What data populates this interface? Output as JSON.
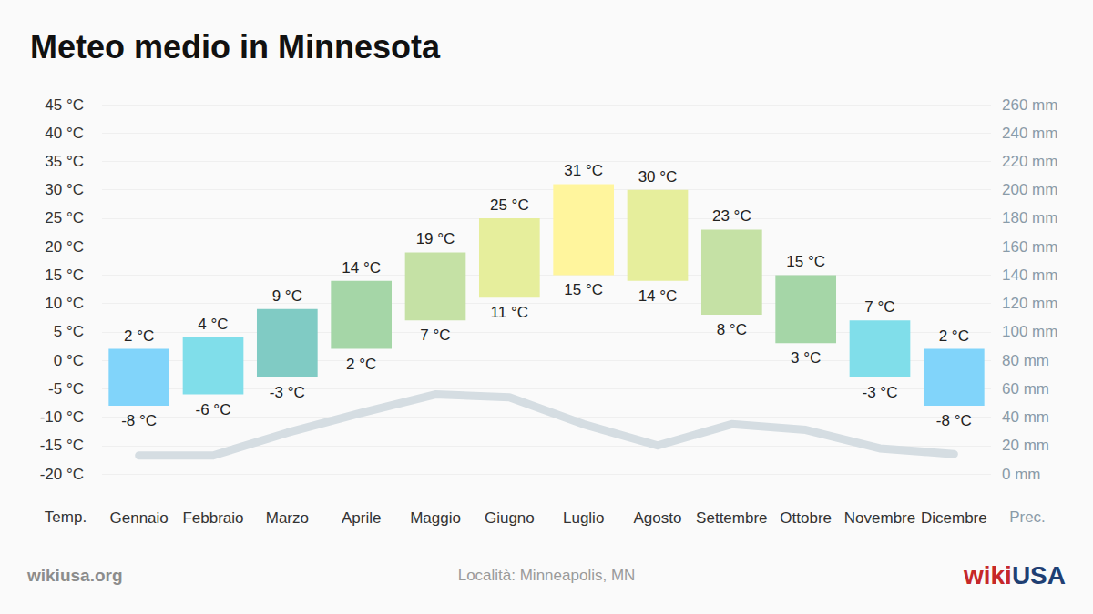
{
  "chart_data": {
    "type": "bar",
    "title": "Meteo medio in Minnesota",
    "ylabel": "Temp.",
    "y2label": "Prec.",
    "source": "wikiusa.org",
    "location": "Località: Minneapolis, MN",
    "logo": [
      "wiki",
      "USA"
    ],
    "categories": [
      "Gennaio",
      "Febbraio",
      "Marzo",
      "Aprile",
      "Maggio",
      "Giugno",
      "Luglio",
      "Agosto",
      "Settembre",
      "Ottobre",
      "Novembre",
      "Dicembre"
    ],
    "data_labels": true,
    "grid": true,
    "series": [
      {
        "type": "bar",
        "low": [
          -8,
          -6,
          -3,
          2,
          7,
          11,
          15,
          14,
          8,
          3,
          -3,
          -8
        ],
        "values": [
          2,
          4,
          9,
          14,
          19,
          25,
          31,
          30,
          23,
          15,
          7,
          2
        ],
        "low_labels": [
          "-8 °C",
          "-6 °C",
          "-3 °C",
          "2 °C",
          "7 °C",
          "11 °C",
          "15 °C",
          "14 °C",
          "8 °C",
          "3 °C",
          "-3 °C",
          "-8 °C"
        ],
        "value_labels": [
          "2 °C",
          "4 °C",
          "9 °C",
          "14 °C",
          "19 °C",
          "25 °C",
          "31 °C",
          "30 °C",
          "23 °C",
          "15 °C",
          "7 °C",
          "2 °C"
        ],
        "colors": [
          "#81d4fa",
          "#80deea",
          "#80cbc4",
          "#a5d6a7",
          "#c5e1a5",
          "#e6ee9c",
          "#fff59d",
          "#e6ee9c",
          "#c5e1a5",
          "#a5d6a7",
          "#80deea",
          "#81d4fa"
        ]
      },
      {
        "type": "line",
        "axis": "y2",
        "color": "#d5dde2",
        "values": [
          13,
          13,
          29,
          43,
          56,
          54,
          35,
          20,
          35,
          31,
          18,
          14
        ]
      }
    ],
    "ylim": [
      -20,
      45
    ],
    "yticks": [
      {
        "value": -20,
        "label": "-20 °C"
      },
      {
        "value": -15,
        "label": "-15 °C"
      },
      {
        "value": -10,
        "label": "-10 °C"
      },
      {
        "value": -5,
        "label": "-5 °C"
      },
      {
        "value": 0,
        "label": "0 °C"
      },
      {
        "value": 5,
        "label": "5 °C"
      },
      {
        "value": 10,
        "label": "10 °C"
      },
      {
        "value": 15,
        "label": "15 °C"
      },
      {
        "value": 20,
        "label": "20 °C"
      },
      {
        "value": 25,
        "label": "25 °C"
      },
      {
        "value": 30,
        "label": "30 °C"
      },
      {
        "value": 35,
        "label": "35 °C"
      },
      {
        "value": 40,
        "label": "40 °C"
      },
      {
        "value": 45,
        "label": "45 °C"
      }
    ],
    "y2lim": [
      0,
      260
    ],
    "y2ticks": [
      {
        "value": 0,
        "label": "0 mm"
      },
      {
        "value": 20,
        "label": "20 mm"
      },
      {
        "value": 40,
        "label": "40 mm"
      },
      {
        "value": 60,
        "label": "60 mm"
      },
      {
        "value": 80,
        "label": "80 mm"
      },
      {
        "value": 100,
        "label": "100 mm"
      },
      {
        "value": 120,
        "label": "120 mm"
      },
      {
        "value": 140,
        "label": "140 mm"
      },
      {
        "value": 160,
        "label": "160 mm"
      },
      {
        "value": 180,
        "label": "180 mm"
      },
      {
        "value": 200,
        "label": "200 mm"
      },
      {
        "value": 220,
        "label": "220 mm"
      },
      {
        "value": 240,
        "label": "240 mm"
      },
      {
        "value": 260,
        "label": "260 mm"
      }
    ]
  }
}
